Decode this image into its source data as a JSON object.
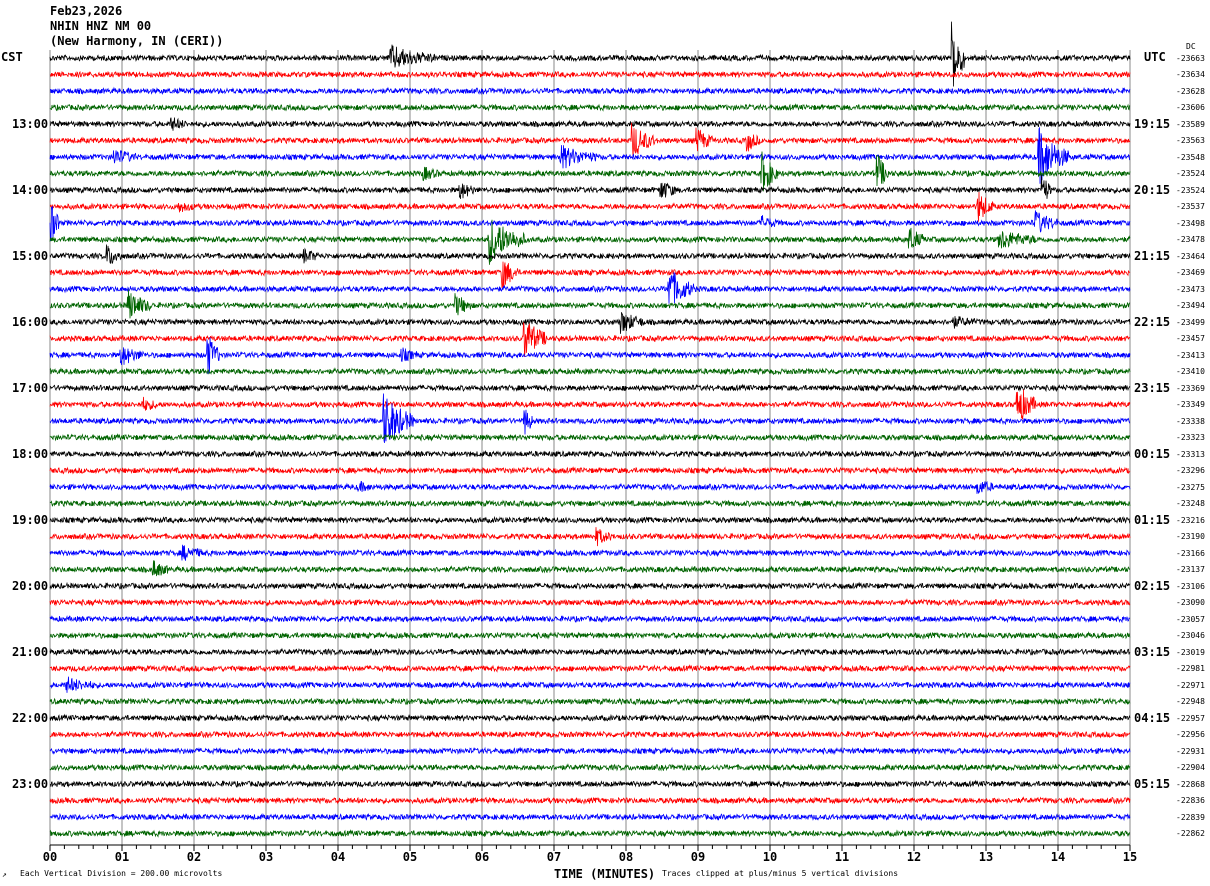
{
  "header": {
    "date": "Feb23,2026",
    "station": "NHIN HNZ NM 00",
    "location": "(New Harmony, IN (CERI))"
  },
  "left_tz": "CST",
  "right_tz": "UTC",
  "dc_label": "DC",
  "footer": {
    "scale": "Each Vertical Division =  200.00 microvolts",
    "xlabel": "TIME (MINUTES)",
    "clip_note": "Traces clipped at plus/minus 5 vertical divisions"
  },
  "chart_data": {
    "type": "line",
    "title": "NHIN HNZ NM 00 helicorder",
    "xlabel": "TIME (MINUTES)",
    "xlim": [
      0,
      15
    ],
    "x_ticks": [
      "00",
      "01",
      "02",
      "03",
      "04",
      "05",
      "06",
      "07",
      "08",
      "09",
      "10",
      "11",
      "12",
      "13",
      "14",
      "15"
    ],
    "trace_colors": [
      "#000000",
      "#ff0000",
      "#0000ff",
      "#006400"
    ],
    "left_hour_labels": [
      "13:00",
      "14:00",
      "15:00",
      "16:00",
      "17:00",
      "18:00",
      "19:00",
      "20:00",
      "21:00",
      "22:00",
      "23:00"
    ],
    "right_hour_labels": [
      "19:15",
      "20:15",
      "21:15",
      "22:15",
      "23:15",
      "00:15",
      "01:15",
      "02:15",
      "03:15",
      "04:15",
      "05:15"
    ],
    "dc_offsets": [
      "-23663",
      "-23634",
      "-23628",
      "-23606",
      "-23589",
      "-23563",
      "-23548",
      "-23524",
      "-23524",
      "-23537",
      "-23498",
      "-23478",
      "-23464",
      "-23469",
      "-23473",
      "-23494",
      "-23499",
      "-23457",
      "-23413",
      "-23410",
      "-23369",
      "-23349",
      "-23338",
      "-23323",
      "-23313",
      "-23296",
      "-23275",
      "-23248",
      "-23216",
      "-23190",
      "-23166",
      "-23137",
      "-23106",
      "-23090",
      "-23057",
      "-23046",
      "-23019",
      "-22981",
      "-22971",
      "-22948",
      "-22957",
      "-22956",
      "-22931",
      "-22904",
      "-22868",
      "-22836",
      "-22839",
      "-22862"
    ],
    "events": [
      [
        0,
        4.75,
        1.2,
        0.6
      ],
      [
        0,
        12.55,
        4,
        0.15
      ],
      [
        4,
        1.7,
        0.6,
        0.2
      ],
      [
        5,
        8.1,
        1.8,
        0.3
      ],
      [
        5,
        9.0,
        1.2,
        0.2
      ],
      [
        5,
        9.7,
        1,
        0.15
      ],
      [
        6,
        0.9,
        0.8,
        0.3
      ],
      [
        6,
        7.1,
        1.2,
        0.5
      ],
      [
        6,
        13.75,
        3,
        0.4
      ],
      [
        7,
        9.9,
        2.2,
        0.2
      ],
      [
        7,
        11.5,
        2,
        0.15
      ],
      [
        7,
        5.2,
        0.6,
        0.2
      ],
      [
        8,
        5.7,
        0.9,
        0.2
      ],
      [
        8,
        8.5,
        1,
        0.2
      ],
      [
        8,
        13.8,
        1.5,
        0.1
      ],
      [
        9,
        12.9,
        1.6,
        0.2
      ],
      [
        9,
        1.8,
        0.5,
        0.2
      ],
      [
        10,
        0.03,
        2,
        0.1
      ],
      [
        10,
        13.7,
        1.2,
        0.3
      ],
      [
        10,
        9.9,
        0.6,
        0.2
      ],
      [
        11,
        6.1,
        2.6,
        0.5
      ],
      [
        11,
        11.95,
        1.2,
        0.2
      ],
      [
        11,
        13.2,
        1,
        0.5
      ],
      [
        12,
        0.8,
        1.1,
        0.2
      ],
      [
        12,
        3.55,
        0.6,
        0.2
      ],
      [
        13,
        6.3,
        1.6,
        0.2
      ],
      [
        14,
        8.6,
        2.2,
        0.35
      ],
      [
        15,
        1.1,
        1.6,
        0.3
      ],
      [
        15,
        5.65,
        1.1,
        0.2
      ],
      [
        16,
        7.95,
        1.1,
        0.3
      ],
      [
        16,
        12.55,
        0.5,
        0.3
      ],
      [
        17,
        6.6,
        2.2,
        0.3
      ],
      [
        18,
        1.0,
        1,
        0.3
      ],
      [
        18,
        2.2,
        2.2,
        0.15
      ],
      [
        18,
        4.9,
        0.6,
        0.2
      ],
      [
        21,
        13.45,
        2.2,
        0.25
      ],
      [
        21,
        1.3,
        0.6,
        0.2
      ],
      [
        22,
        4.65,
        3,
        0.4
      ],
      [
        22,
        6.6,
        1.5,
        0.1
      ],
      [
        26,
        12.9,
        0.7,
        0.2
      ],
      [
        26,
        4.3,
        0.4,
        0.2
      ],
      [
        29,
        7.6,
        0.8,
        0.2
      ],
      [
        30,
        1.85,
        0.7,
        0.3
      ],
      [
        31,
        1.45,
        0.8,
        0.2
      ],
      [
        38,
        0.25,
        0.7,
        0.4
      ]
    ]
  }
}
